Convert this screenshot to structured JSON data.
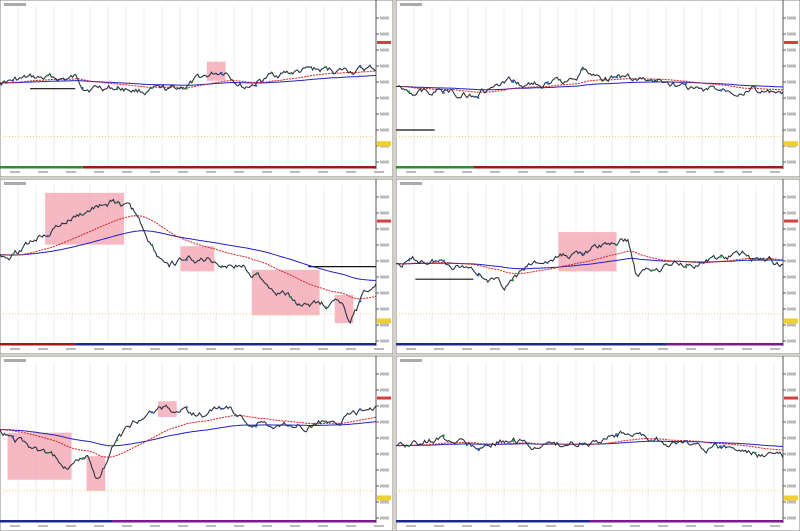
{
  "screen": {
    "panel_count": 6
  }
}
